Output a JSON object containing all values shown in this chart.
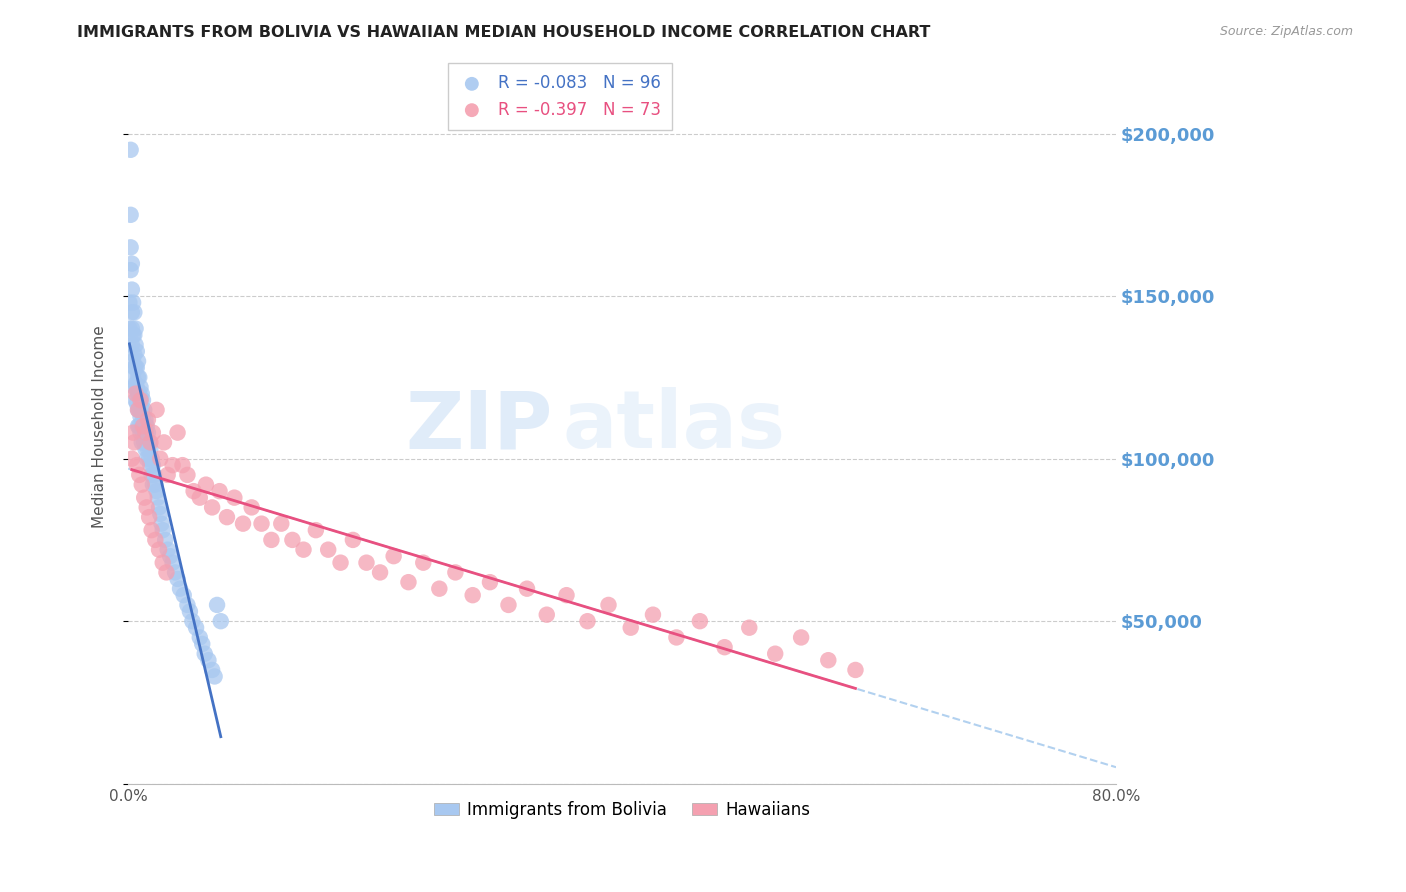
{
  "title": "IMMIGRANTS FROM BOLIVIA VS HAWAIIAN MEDIAN HOUSEHOLD INCOME CORRELATION CHART",
  "source": "Source: ZipAtlas.com",
  "ylabel": "Median Household Income",
  "watermark": "ZIPatlas",
  "xlim": [
    0.0,
    0.8
  ],
  "ylim": [
    0,
    220000
  ],
  "yticks_right": [
    50000,
    100000,
    150000,
    200000
  ],
  "ytick_labels_right": [
    "$50,000",
    "$100,000",
    "$150,000",
    "$200,000"
  ],
  "series": [
    {
      "name": "Immigrants from Bolivia",
      "R": -0.083,
      "N": 96,
      "color": "#A8C8F0",
      "line_color": "#4472C4",
      "x": [
        0.001,
        0.001,
        0.002,
        0.002,
        0.002,
        0.002,
        0.003,
        0.003,
        0.003,
        0.003,
        0.003,
        0.004,
        0.004,
        0.004,
        0.004,
        0.005,
        0.005,
        0.005,
        0.005,
        0.005,
        0.006,
        0.006,
        0.006,
        0.006,
        0.006,
        0.007,
        0.007,
        0.007,
        0.007,
        0.008,
        0.008,
        0.008,
        0.008,
        0.008,
        0.009,
        0.009,
        0.009,
        0.009,
        0.01,
        0.01,
        0.01,
        0.01,
        0.011,
        0.011,
        0.011,
        0.011,
        0.012,
        0.012,
        0.012,
        0.013,
        0.013,
        0.013,
        0.014,
        0.014,
        0.014,
        0.015,
        0.015,
        0.015,
        0.016,
        0.016,
        0.017,
        0.017,
        0.018,
        0.018,
        0.019,
        0.019,
        0.02,
        0.02,
        0.021,
        0.022,
        0.023,
        0.024,
        0.025,
        0.026,
        0.027,
        0.028,
        0.03,
        0.032,
        0.034,
        0.036,
        0.038,
        0.04,
        0.042,
        0.045,
        0.048,
        0.05,
        0.052,
        0.055,
        0.058,
        0.06,
        0.062,
        0.065,
        0.068,
        0.07,
        0.072,
        0.075
      ],
      "y": [
        148000,
        140000,
        175000,
        195000,
        165000,
        158000,
        160000,
        152000,
        145000,
        140000,
        135000,
        148000,
        138000,
        130000,
        125000,
        145000,
        138000,
        132000,
        128000,
        122000,
        140000,
        135000,
        128000,
        123000,
        118000,
        133000,
        128000,
        122000,
        117000,
        130000,
        125000,
        120000,
        115000,
        110000,
        125000,
        120000,
        115000,
        110000,
        122000,
        118000,
        113000,
        108000,
        120000,
        115000,
        110000,
        105000,
        118000,
        113000,
        108000,
        115000,
        110000,
        105000,
        112000,
        108000,
        103000,
        110000,
        105000,
        100000,
        108000,
        103000,
        105000,
        100000,
        103000,
        98000,
        100000,
        95000,
        98000,
        92000,
        95000,
        92000,
        90000,
        88000,
        85000,
        83000,
        80000,
        78000,
        75000,
        72000,
        70000,
        68000,
        65000,
        63000,
        60000,
        58000,
        55000,
        53000,
        50000,
        48000,
        45000,
        43000,
        40000,
        38000,
        35000,
        33000,
        55000,
        50000
      ]
    },
    {
      "name": "Hawaiians",
      "R": -0.397,
      "N": 73,
      "color": "#F4A0B0",
      "line_color": "#E85080",
      "x": [
        0.004,
        0.006,
        0.008,
        0.01,
        0.012,
        0.014,
        0.016,
        0.018,
        0.02,
        0.023,
        0.026,
        0.029,
        0.032,
        0.036,
        0.04,
        0.044,
        0.048,
        0.053,
        0.058,
        0.063,
        0.068,
        0.074,
        0.08,
        0.086,
        0.093,
        0.1,
        0.108,
        0.116,
        0.124,
        0.133,
        0.142,
        0.152,
        0.162,
        0.172,
        0.182,
        0.193,
        0.204,
        0.215,
        0.227,
        0.239,
        0.252,
        0.265,
        0.279,
        0.293,
        0.308,
        0.323,
        0.339,
        0.355,
        0.372,
        0.389,
        0.407,
        0.425,
        0.444,
        0.463,
        0.483,
        0.503,
        0.524,
        0.545,
        0.567,
        0.589,
        0.003,
        0.005,
        0.007,
        0.009,
        0.011,
        0.013,
        0.015,
        0.017,
        0.019,
        0.022,
        0.025,
        0.028,
        0.031
      ],
      "y": [
        108000,
        120000,
        115000,
        118000,
        110000,
        108000,
        112000,
        105000,
        108000,
        115000,
        100000,
        105000,
        95000,
        98000,
        108000,
        98000,
        95000,
        90000,
        88000,
        92000,
        85000,
        90000,
        82000,
        88000,
        80000,
        85000,
        80000,
        75000,
        80000,
        75000,
        72000,
        78000,
        72000,
        68000,
        75000,
        68000,
        65000,
        70000,
        62000,
        68000,
        60000,
        65000,
        58000,
        62000,
        55000,
        60000,
        52000,
        58000,
        50000,
        55000,
        48000,
        52000,
        45000,
        50000,
        42000,
        48000,
        40000,
        45000,
        38000,
        35000,
        100000,
        105000,
        98000,
        95000,
        92000,
        88000,
        85000,
        82000,
        78000,
        75000,
        72000,
        68000,
        65000
      ]
    }
  ],
  "title_color": "#222222",
  "grid_color": "#CCCCCC",
  "right_axis_label_color": "#5B9BD5",
  "background_color": "#FFFFFF"
}
